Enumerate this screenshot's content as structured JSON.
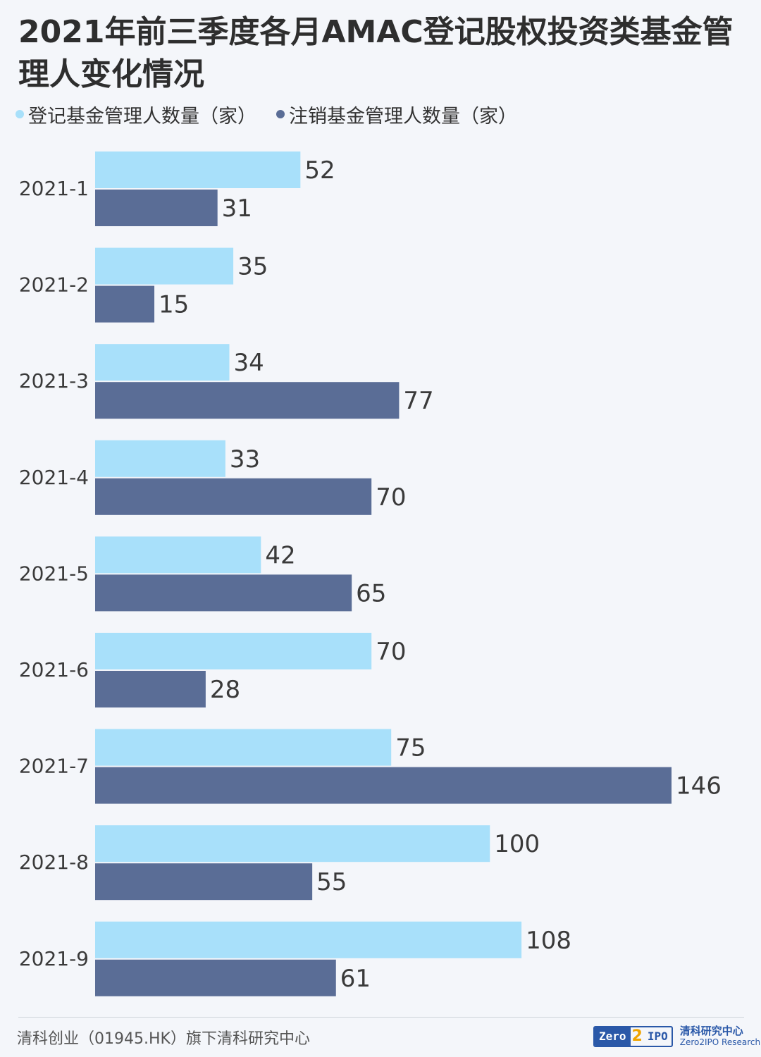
{
  "header": {
    "title": "2021年前三季度各月AMAC登记股权投资类基金管理人变化情况"
  },
  "colors": {
    "registered": "#a8e0fa",
    "cancelled": "#5a6d96",
    "background": "#f4f6fa"
  },
  "chart_data": {
    "type": "bar",
    "orientation": "horizontal",
    "categories": [
      "2021-1",
      "2021-2",
      "2021-3",
      "2021-4",
      "2021-5",
      "2021-6",
      "2021-7",
      "2021-8",
      "2021-9"
    ],
    "series": [
      {
        "name": "登记基金管理人数量（家）",
        "values": [
          52,
          35,
          34,
          33,
          42,
          70,
          75,
          100,
          108
        ]
      },
      {
        "name": "注销基金管理人数量（家）",
        "values": [
          31,
          15,
          77,
          70,
          65,
          28,
          146,
          55,
          61
        ]
      }
    ],
    "xlim": [
      0,
      146
    ],
    "grid": false,
    "legend_position": "top-left"
  },
  "footer": {
    "source": "清科创业（01945.HK）旗下清科研究中心",
    "logo_zero": "Zero",
    "logo_two": "2",
    "logo_ipo": "IPO",
    "logo_cn": "清科研究中心",
    "logo_en": "Zero2IPO Research"
  }
}
